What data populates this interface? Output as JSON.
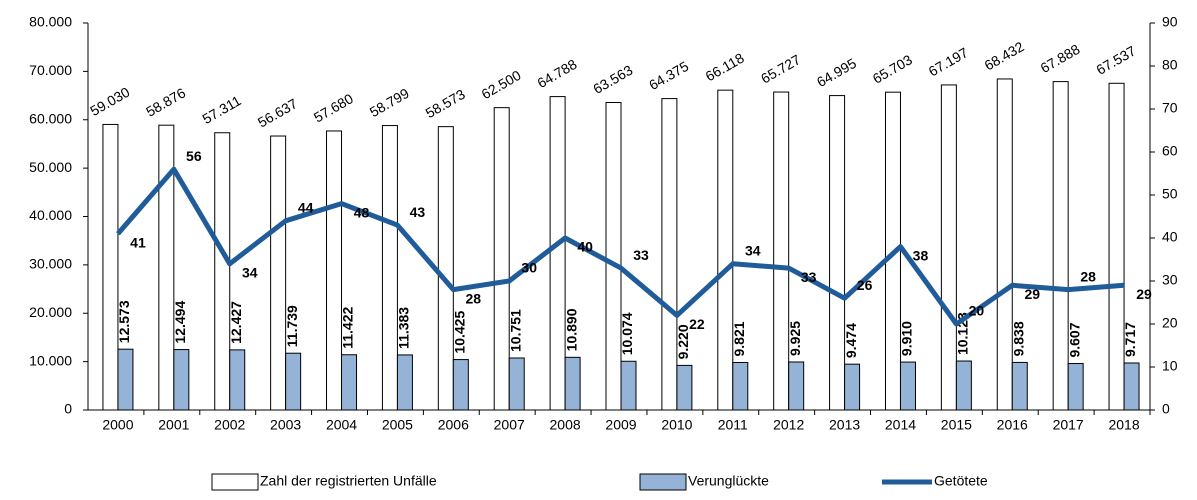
{
  "chart_data": {
    "type": "bar",
    "categories": [
      "2000",
      "2001",
      "2002",
      "2003",
      "2004",
      "2005",
      "2006",
      "2007",
      "2008",
      "2009",
      "2010",
      "2011",
      "2012",
      "2013",
      "2014",
      "2015",
      "2016",
      "2017",
      "2018"
    ],
    "series": [
      {
        "name": "Zahl der registrierten Unfälle",
        "type": "bar",
        "color": "#ffffff",
        "values": [
          59030,
          58876,
          57311,
          56637,
          57680,
          58799,
          58573,
          62500,
          64788,
          63563,
          64375,
          66118,
          65727,
          64995,
          65703,
          67197,
          68432,
          67888,
          67537
        ],
        "value_labels": [
          "59.030",
          "58.876",
          "57.311",
          "56.637",
          "57.680",
          "58.799",
          "58.573",
          "62.500",
          "64.788",
          "63.563",
          "64.375",
          "66.118",
          "65.727",
          "64.995",
          "65.703",
          "67.197",
          "68.432",
          "67.888",
          "67.537"
        ]
      },
      {
        "name": "Verunglückte",
        "type": "bar",
        "color": "#95b3d7",
        "values": [
          12573,
          12494,
          12427,
          11739,
          11422,
          11383,
          10425,
          10751,
          10890,
          10074,
          9220,
          9821,
          9925,
          9474,
          9910,
          10123,
          9838,
          9607,
          9717
        ],
        "value_labels": [
          "12.573",
          "12.494",
          "12.427",
          "11.739",
          "11.422",
          "11.383",
          "10.425",
          "10.751",
          "10.890",
          "10.074",
          "9.220",
          "9.821",
          "9.925",
          "9.474",
          "9.910",
          "10.123",
          "9.838",
          "9.607",
          "9.717"
        ]
      },
      {
        "name": "Getötete",
        "type": "line",
        "axis": "y2",
        "color": "#1f5c99",
        "values": [
          41,
          56,
          34,
          44,
          48,
          43,
          28,
          30,
          40,
          33,
          22,
          34,
          33,
          26,
          38,
          20,
          29,
          28,
          29
        ]
      }
    ],
    "ylim": [
      0,
      80000
    ],
    "yticks": [
      {
        "value": 0,
        "label": "0"
      },
      {
        "value": 10000,
        "label": "10.000"
      },
      {
        "value": 20000,
        "label": "20.000"
      },
      {
        "value": 30000,
        "label": "30.000"
      },
      {
        "value": 40000,
        "label": "40.000"
      },
      {
        "value": 50000,
        "label": "50.000"
      },
      {
        "value": 60000,
        "label": "60.000"
      },
      {
        "value": 70000,
        "label": "70.000"
      },
      {
        "value": 80000,
        "label": "80.000"
      }
    ],
    "y2lim": [
      0,
      90
    ],
    "y2ticks": [
      0,
      10,
      20,
      30,
      40,
      50,
      60,
      70,
      80,
      90
    ],
    "legend": "bottom"
  }
}
